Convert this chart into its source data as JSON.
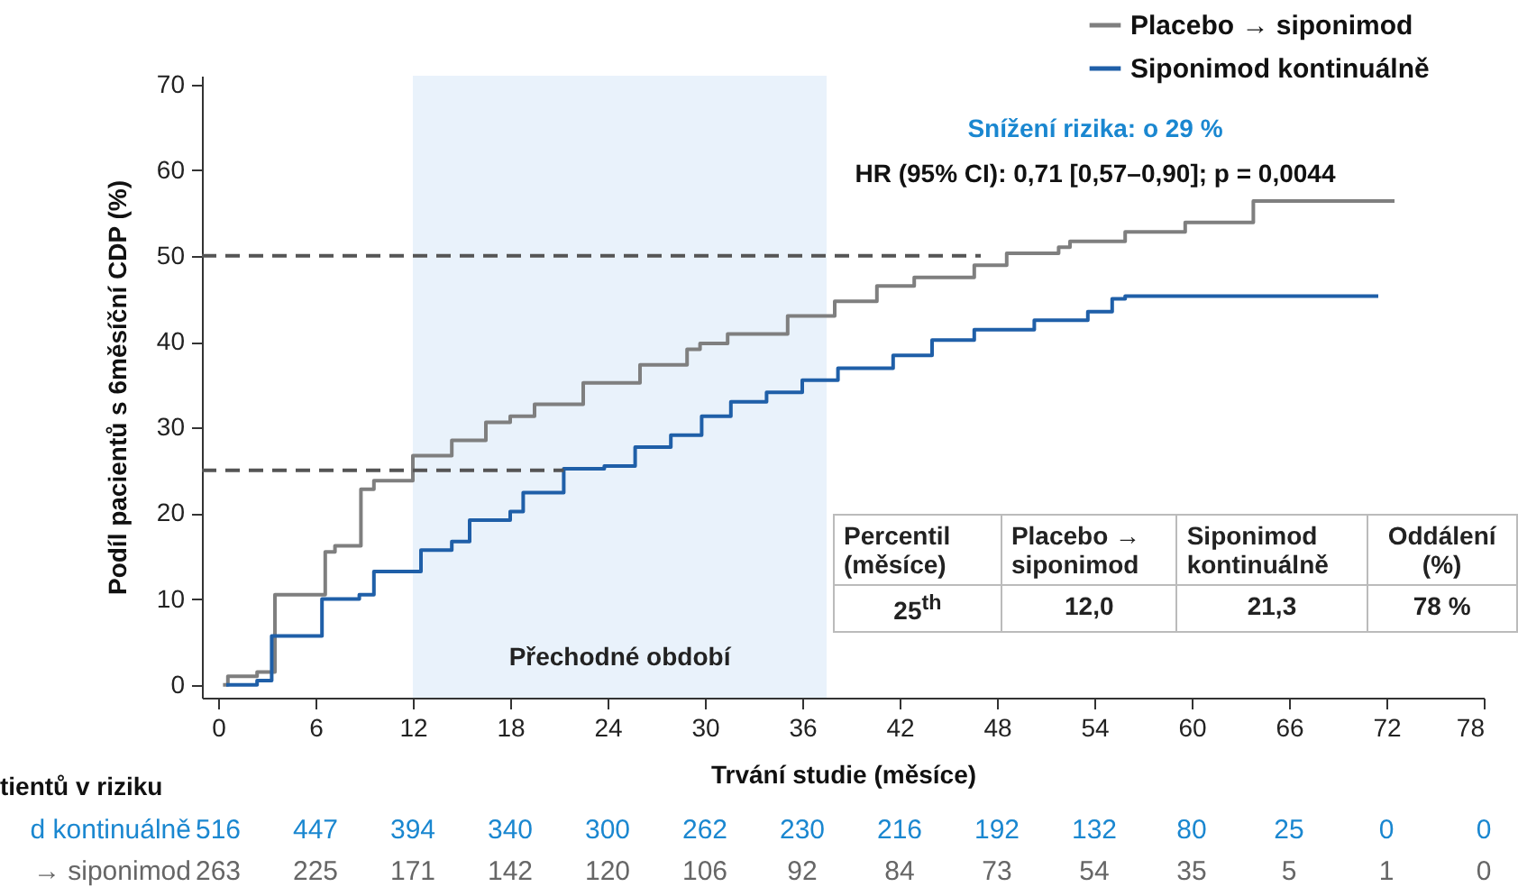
{
  "chart_data": [
    {
      "type": "step",
      "xlabel": "Trvání studie (měsíce)",
      "ylabel": "Podíl pacientů s 6měsíční CDP (%)",
      "xlim": [
        -1,
        78
      ],
      "xticks": [
        0,
        6,
        12,
        18,
        24,
        30,
        36,
        42,
        48,
        54,
        60,
        66,
        72,
        78
      ],
      "ylim": [
        -1.5,
        71
      ],
      "yticks": [
        0,
        10,
        20,
        30,
        40,
        50,
        60,
        70
      ],
      "legend": "top right",
      "annotations": [
        "Snížení rizika: o 29 %",
        "HR (95% CI): 0,71 [0,57–0,90]; p = 0,0044"
      ],
      "bands": [
        {
          "axis": "x",
          "from": 12,
          "to": 37.5,
          "label": "Přechodné období",
          "color": "#e9f2fb"
        }
      ],
      "series": [
        {
          "name": "Placebo → siponimod",
          "color": "#7f7f7f",
          "x": [
            0.3,
            0.6,
            2.4,
            3.5,
            6.6,
            7.2,
            8.8,
            9.6,
            12.0,
            14.4,
            16.5,
            18,
            19.5,
            22.5,
            26,
            28.9,
            29.7,
            31.4,
            35.1,
            38,
            40.6,
            42.9,
            46.6,
            48.6,
            51.8,
            52.5,
            55.9,
            59.6,
            63.8,
            72.5
          ],
          "values": [
            0,
            1,
            1.5,
            10.5,
            15.5,
            16.2,
            22.8,
            23.8,
            26.7,
            28.5,
            30.6,
            31.3,
            32.7,
            35.2,
            37.3,
            39.1,
            39.8,
            40.9,
            43.0,
            44.7,
            46.5,
            47.5,
            48.9,
            50.3,
            51,
            51.7,
            52.8,
            53.9,
            56.4,
            56.4
          ]
        },
        {
          "name": "Siponimod kontinuálně",
          "color": "#1f5fa8",
          "x": [
            0.5,
            2.4,
            3.3,
            6.4,
            8.7,
            9.6,
            12.5,
            14.4,
            15.5,
            18,
            18.8,
            21.3,
            23.8,
            25.7,
            27.9,
            29.8,
            31.6,
            33.8,
            36,
            38.2,
            41.6,
            44,
            46.6,
            50.3,
            53.6,
            55.1,
            55.9,
            71.5
          ],
          "values": [
            0,
            0.5,
            5.7,
            10,
            10.5,
            13.2,
            15.7,
            16.7,
            19.2,
            20.2,
            22.4,
            25.2,
            25.5,
            27.7,
            29.1,
            31.3,
            33,
            34.1,
            35.5,
            36.9,
            38.4,
            40.2,
            41.4,
            42.5,
            43.5,
            45,
            45.3,
            45.3
          ]
        },
        {
          "type": "line",
          "color": "#555555",
          "line_style": "dashed",
          "x": [
            -1,
            47
          ],
          "values": [
            50,
            50
          ]
        },
        {
          "type": "line",
          "color": "#555555",
          "line_style": "dashed",
          "x": [
            -1,
            21.3
          ],
          "values": [
            25,
            25
          ]
        }
      ]
    },
    {
      "type": "other",
      "title": "tientů v riziku",
      "series": [
        {
          "name": "d kontinuálně",
          "color": "#1a87d0"
        },
        {
          "name": "→ siponimod",
          "color": "#666666"
        }
      ],
      "annotations": [
        "516",
        "447",
        "394",
        "340",
        "300",
        "262",
        "230",
        "216",
        "192",
        "132",
        "80",
        "25",
        "0",
        "0",
        "263",
        "225",
        "171",
        "142",
        "120",
        "106",
        "92",
        "84",
        "73",
        "54",
        "35",
        "5",
        "1",
        "0"
      ]
    },
    {
      "type": "other",
      "annotations": [
        "Percentil (měsíce)",
        "Placebo → siponimod",
        "Siponimod kontinuálně",
        "Oddálení (%)",
        "25$^{th}$",
        "12,0",
        "21,3",
        "78 %"
      ]
    }
  ]
}
